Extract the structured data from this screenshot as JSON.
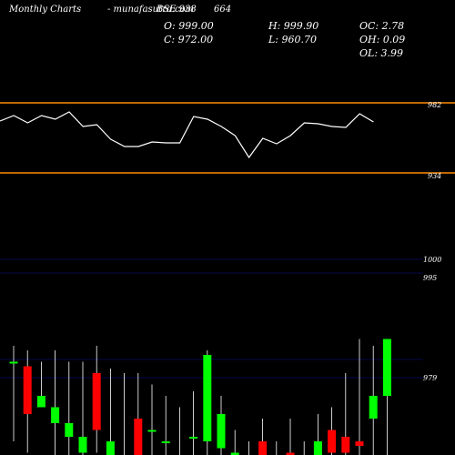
{
  "header": {
    "brand": "Monthly Charts",
    "symbol": "- munafasutra.com",
    "exchange": "BSE 938",
    "code": "664",
    "open": "O: 999.00",
    "close": "C: 972.00",
    "high": "H: 999.90",
    "low": "L: 960.70",
    "oc": "OC: 2.78",
    "oh": "OH: 0.09",
    "ol": "OL: 3.99"
  },
  "colors": {
    "up": "#00ff00",
    "down": "#ff0000",
    "level": "#ff8c00",
    "line": "#ffffff",
    "grid": "#1a1aff"
  },
  "chart_data": [
    {
      "type": "line",
      "title": "",
      "values": [
        68,
        62,
        70,
        62,
        66,
        58,
        74,
        72,
        88,
        96,
        96,
        91,
        92,
        92,
        63,
        66,
        74,
        84,
        108,
        87,
        93,
        84,
        70,
        71,
        74,
        75,
        60,
        69
      ],
      "ylim": [
        150,
        0
      ],
      "levels": [
        {
          "value": 48,
          "label": "982"
        },
        {
          "value": 125,
          "label": "934"
        }
      ]
    },
    {
      "type": "candlestick",
      "title": "",
      "y_tick_labels": [
        "1000",
        "995",
        "979"
      ],
      "candles": [
        {
          "o": 5,
          "c": 5,
          "h": 12,
          "l": -30
        },
        {
          "o": 3,
          "c": -18,
          "h": 10,
          "l": -35
        },
        {
          "o": -15,
          "c": -10,
          "h": 5,
          "l": -15
        },
        {
          "o": -22,
          "c": -15,
          "h": 10,
          "l": -40
        },
        {
          "o": -28,
          "c": -22,
          "h": 5,
          "l": -48
        },
        {
          "o": -35,
          "c": -28,
          "h": 5,
          "l": -42
        },
        {
          "o": 0,
          "c": -25,
          "h": 12,
          "l": -35
        },
        {
          "o": -38,
          "c": -30,
          "h": 2,
          "l": -45
        },
        {
          "o": -38,
          "c": -36,
          "h": 0,
          "l": -48
        },
        {
          "o": -20,
          "c": -40,
          "h": 0,
          "l": -50
        },
        {
          "o": -25,
          "c": -25,
          "h": -5,
          "l": -48
        },
        {
          "o": -30,
          "c": -30,
          "h": -10,
          "l": -55
        },
        {
          "o": -38,
          "c": -38,
          "h": -15,
          "l": -50
        },
        {
          "o": -28,
          "c": -28,
          "h": -8,
          "l": -45
        },
        {
          "o": -30,
          "c": 8,
          "h": 10,
          "l": -48
        },
        {
          "o": -33,
          "c": -18,
          "h": -10,
          "l": -48
        },
        {
          "o": -40,
          "c": -35,
          "h": -25,
          "l": -45
        },
        {
          "o": -45,
          "c": -42,
          "h": -30,
          "l": -50
        },
        {
          "o": -30,
          "c": -45,
          "h": -20,
          "l": -48
        },
        {
          "o": -45,
          "c": -40,
          "h": -30,
          "l": -50
        },
        {
          "o": -35,
          "c": -40,
          "h": -20,
          "l": -48
        },
        {
          "o": -40,
          "c": -42,
          "h": -30,
          "l": -50
        },
        {
          "o": -38,
          "c": -30,
          "h": -18,
          "l": -45
        },
        {
          "o": -25,
          "c": -35,
          "h": -15,
          "l": -40
        },
        {
          "o": -28,
          "c": -35,
          "h": 0,
          "l": -42
        },
        {
          "o": -30,
          "c": -32,
          "h": 15,
          "l": -40
        },
        {
          "o": -20,
          "c": -10,
          "h": 12,
          "l": -38
        },
        {
          "o": -10,
          "c": 15,
          "h": 15,
          "l": -40
        }
      ]
    }
  ]
}
